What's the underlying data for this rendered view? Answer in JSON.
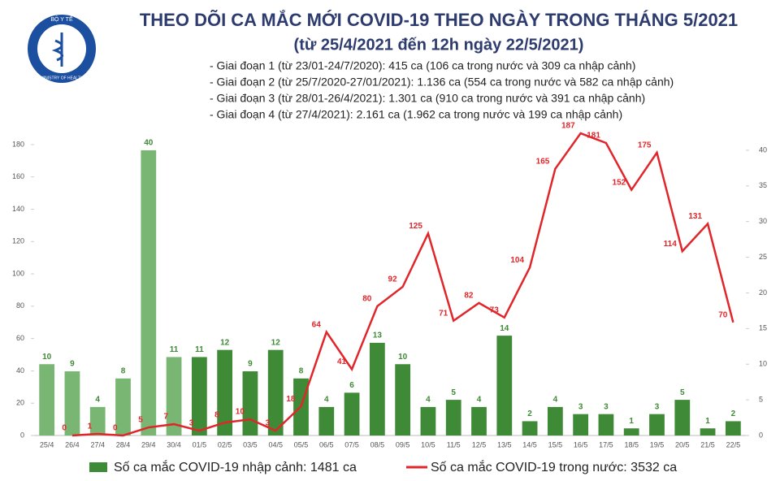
{
  "logo": {
    "top": "BỘ Y TẾ",
    "bottom": "MINISTRY OF HEALTH"
  },
  "chart_data": {
    "type": "combo",
    "title": "THEO DÕI CA MẮC MỚI COVID-19 THEO NGÀY TRONG THÁNG 5/2021",
    "subtitle": "(từ 25/4/2021 đến 12h ngày 22/5/2021)",
    "annotations": [
      "- Giai đoạn 1 (từ 23/01-24/7/2020): 415 ca (106 ca trong nước và 309 ca nhập cảnh)",
      "- Giai đoạn 2 (từ 25/7/2020-27/01/2021): 1.136 ca (554 ca trong nước và 582 ca nhập cảnh)",
      "- Giai đoạn 3 (từ 28/01-26/4/2021): 1.301 ca (910 ca trong nước và 391 ca nhập cảnh)",
      "- Giai đoạn 4 (từ 27/4/2021): 2.161 ca (1.962 ca trong nước và 199 ca nhập cảnh)"
    ],
    "categories": [
      "25/4",
      "26/4",
      "27/4",
      "28/4",
      "29/4",
      "30/4",
      "01/5",
      "02/5",
      "03/5",
      "04/5",
      "05/5",
      "06/5",
      "07/5",
      "08/5",
      "09/5",
      "10/5",
      "11/5",
      "12/5",
      "13/5",
      "14/5",
      "15/5",
      "16/5",
      "17/5",
      "18/5",
      "19/5",
      "20/5",
      "21/5",
      "22/5"
    ],
    "series": [
      {
        "name": "Số ca mắc COVID-19 nhập cảnh: 1481 ca",
        "type": "bar",
        "axis": "y2",
        "color": "#3f8a36",
        "colors": [
          "#7ab673",
          "#7ab673",
          "#7ab673",
          "#7ab673",
          "#7ab673",
          "#7ab673",
          "#3f8a36",
          "#3f8a36",
          "#3f8a36",
          "#3f8a36",
          "#3f8a36",
          "#3f8a36",
          "#3f8a36",
          "#3f8a36",
          "#3f8a36",
          "#3f8a36",
          "#3f8a36",
          "#3f8a36",
          "#3f8a36",
          "#3f8a36",
          "#3f8a36",
          "#3f8a36",
          "#3f8a36",
          "#3f8a36",
          "#3f8a36",
          "#3f8a36",
          "#3f8a36",
          "#3f8a36"
        ],
        "values": [
          10,
          9,
          4,
          8,
          40,
          11,
          11,
          12,
          9,
          12,
          8,
          4,
          6,
          13,
          10,
          4,
          5,
          4,
          14,
          2,
          4,
          3,
          3,
          1,
          3,
          5,
          1,
          2
        ]
      },
      {
        "name": "Số ca mắc COVID-19 trong nước: 3532 ca",
        "type": "line",
        "color": "#e0262a",
        "values": [
          null,
          0,
          1,
          0,
          5,
          7,
          3,
          8,
          10,
          3,
          18,
          64,
          41,
          80,
          92,
          125,
          71,
          82,
          73,
          104,
          165,
          187,
          181,
          152,
          175,
          114,
          131,
          70
        ]
      }
    ],
    "ylim": [
      0,
      184
    ],
    "yticks": [
      0,
      20,
      40,
      60,
      80,
      100,
      120,
      140,
      160,
      180
    ],
    "y2lim": [
      0,
      41.7
    ],
    "y2ticks": [
      0,
      5,
      10,
      15,
      20,
      25,
      30,
      35,
      40
    ]
  }
}
